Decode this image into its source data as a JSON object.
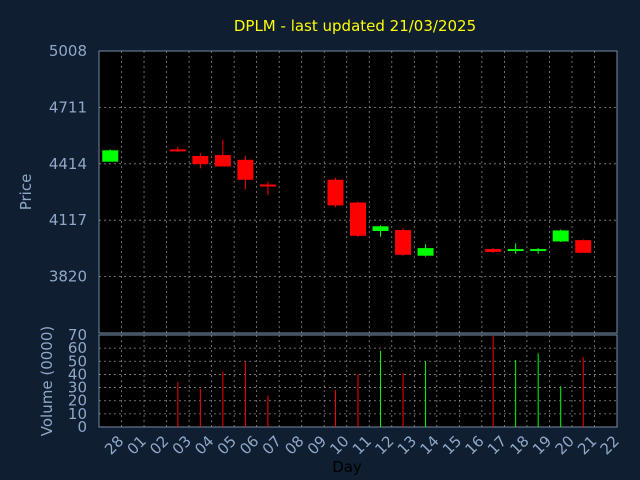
{
  "chart_data": {
    "type": "candlestick",
    "title": "DPLM - last updated 21/03/2025",
    "xlabel": "Day",
    "x_ticks": [
      "28",
      "01",
      "02",
      "03",
      "04",
      "05",
      "06",
      "07",
      "08",
      "09",
      "10",
      "11",
      "12",
      "13",
      "14",
      "15",
      "16",
      "17",
      "18",
      "19",
      "20",
      "21",
      "22"
    ],
    "price_panel": {
      "ylabel": "Price",
      "ylim": [
        3523,
        5008
      ],
      "y_ticks": [
        "5008",
        "4711",
        "4414",
        "4117",
        "3820"
      ],
      "candles": [
        {
          "day": "28",
          "open": 4425,
          "high": 4490,
          "low": 4425,
          "close": 4485
        },
        {
          "day": "03",
          "open": 4490,
          "high": 4505,
          "low": 4475,
          "close": 4485
        },
        {
          "day": "04",
          "open": 4455,
          "high": 4470,
          "low": 4390,
          "close": 4412
        },
        {
          "day": "05",
          "open": 4460,
          "high": 4540,
          "low": 4400,
          "close": 4400
        },
        {
          "day": "06",
          "open": 4435,
          "high": 4455,
          "low": 4280,
          "close": 4330
        },
        {
          "day": "07",
          "open": 4305,
          "high": 4320,
          "low": 4250,
          "close": 4295
        },
        {
          "day": "10",
          "open": 4330,
          "high": 4340,
          "low": 4185,
          "close": 4195
        },
        {
          "day": "11",
          "open": 4210,
          "high": 4215,
          "low": 4030,
          "close": 4035
        },
        {
          "day": "12",
          "open": 4060,
          "high": 4090,
          "low": 4030,
          "close": 4085
        },
        {
          "day": "13",
          "open": 4065,
          "high": 4075,
          "low": 3930,
          "close": 3935
        },
        {
          "day": "14",
          "open": 3930,
          "high": 3990,
          "low": 3925,
          "close": 3970
        },
        {
          "day": "17",
          "open": 3965,
          "high": 3970,
          "low": 3945,
          "close": 3950
        },
        {
          "day": "18",
          "open": 3960,
          "high": 3995,
          "low": 3940,
          "close": 3965
        },
        {
          "day": "19",
          "open": 3958,
          "high": 3970,
          "low": 3940,
          "close": 3965
        },
        {
          "day": "20",
          "open": 4005,
          "high": 4068,
          "low": 4002,
          "close": 4063
        },
        {
          "day": "21",
          "open": 4012,
          "high": 4016,
          "low": 3945,
          "close": 3945
        }
      ]
    },
    "volume_panel": {
      "ylabel": "Volume (0000)",
      "ylim": [
        0,
        70
      ],
      "y_ticks": [
        "70",
        "60",
        "50",
        "40",
        "30",
        "20",
        "10",
        "0"
      ],
      "bars": [
        {
          "day": "03",
          "value": 34,
          "direction": "down"
        },
        {
          "day": "04",
          "value": 29,
          "direction": "down"
        },
        {
          "day": "05",
          "value": 42,
          "direction": "down"
        },
        {
          "day": "06",
          "value": 50,
          "direction": "down"
        },
        {
          "day": "07",
          "value": 24,
          "direction": "down"
        },
        {
          "day": "10",
          "value": 28,
          "direction": "down"
        },
        {
          "day": "11",
          "value": 40,
          "direction": "down"
        },
        {
          "day": "12",
          "value": 58,
          "direction": "up"
        },
        {
          "day": "13",
          "value": 41,
          "direction": "down"
        },
        {
          "day": "14",
          "value": 50,
          "direction": "up"
        },
        {
          "day": "17",
          "value": 69,
          "direction": "down"
        },
        {
          "day": "18",
          "value": 51,
          "direction": "up"
        },
        {
          "day": "19",
          "value": 56,
          "direction": "up"
        },
        {
          "day": "20",
          "value": 31,
          "direction": "up"
        },
        {
          "day": "21",
          "value": 53,
          "direction": "down"
        }
      ]
    },
    "grid": true,
    "colors": {
      "background": "#0f1e30",
      "plot_background": "#000000",
      "up": "#00ff00",
      "down": "#ff0000",
      "grid": "#8a8a8a",
      "axis_text": "#8fa8c8",
      "title": "#ffff00"
    }
  }
}
